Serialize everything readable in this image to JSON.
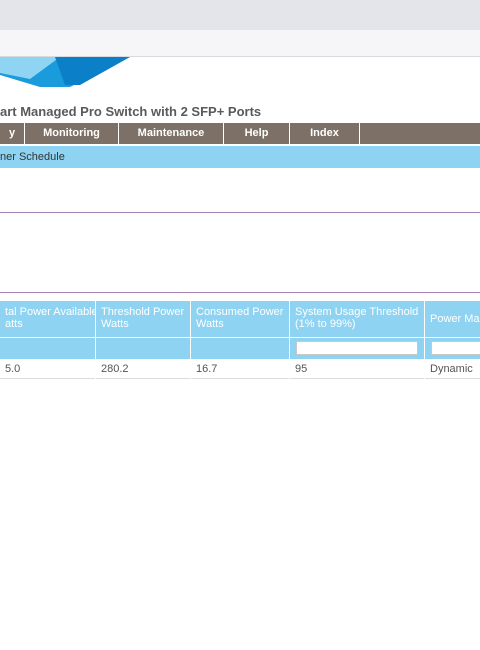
{
  "header": {
    "product_title": "art Managed Pro Switch with 2 SFP+ Ports"
  },
  "nav": {
    "items": [
      {
        "label": "y"
      },
      {
        "label": "Monitoring"
      },
      {
        "label": "Maintenance"
      },
      {
        "label": "Help"
      },
      {
        "label": "Index"
      },
      {
        "label": ""
      }
    ]
  },
  "subnav": {
    "item": "ner Schedule"
  },
  "table": {
    "headers": [
      {
        "line1": "tal Power Available",
        "line2": "atts"
      },
      {
        "line1": "Threshold Power",
        "line2": "Watts"
      },
      {
        "line1": "Consumed Power",
        "line2": "Watts"
      },
      {
        "line1": "System Usage Threshold",
        "line2": "(1% to 99%)"
      },
      {
        "line1": "Power Ma",
        "line2": ""
      }
    ],
    "threshold_input": {
      "value": ""
    },
    "power_mode_select": {
      "value": ""
    },
    "row": [
      "5.0",
      "280.2",
      "16.7",
      "95",
      "Dynamic"
    ]
  },
  "colors": {
    "nav_bg": "#7c7067",
    "header_blue": "#8ed3f2",
    "rule_purple": "#a783b7"
  }
}
